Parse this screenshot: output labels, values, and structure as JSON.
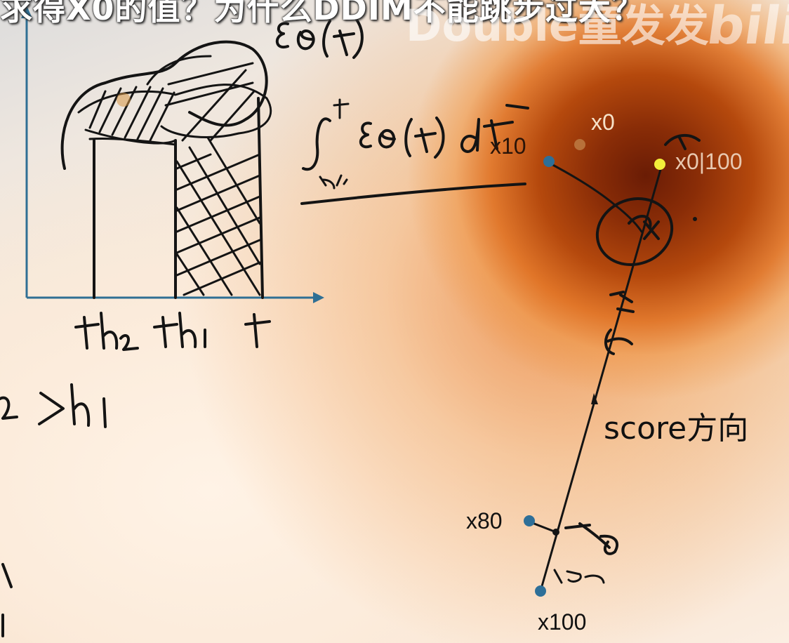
{
  "header": {
    "caption": "求得X0的值？为什么DDIM不能跳步过大？",
    "watermark": "Double童发发",
    "logo": "bili"
  },
  "diagram": {
    "points": [
      {
        "label": "x0",
        "color": "#b8713a"
      },
      {
        "label": "x10",
        "color": "#2e6f98"
      },
      {
        "label": "x0|100",
        "color": "#f2ee3a"
      },
      {
        "label": "x80",
        "color": "#2e6f98"
      },
      {
        "label": "x100",
        "color": "#2e6f98"
      }
    ],
    "direction_label": "score方向",
    "colors": {
      "axis": "#2f6f94",
      "ink": "#141414",
      "heat_core": "#6a1c05"
    }
  }
}
